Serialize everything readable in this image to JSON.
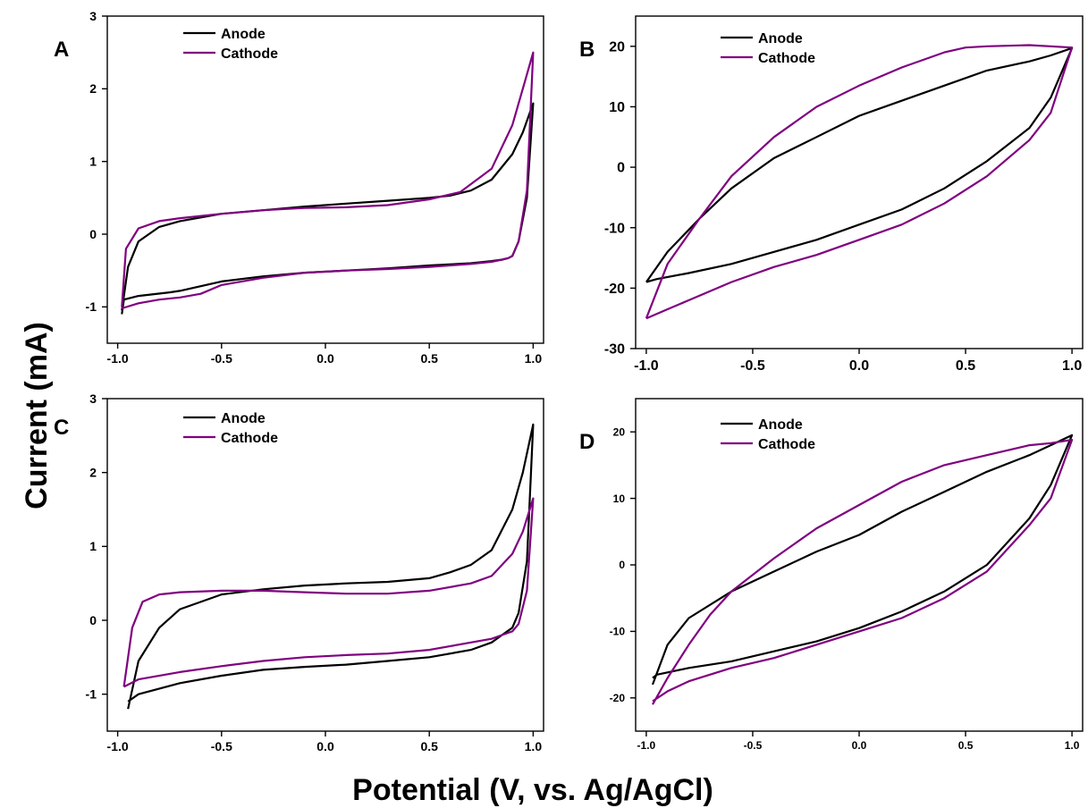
{
  "figure": {
    "ylabel": "Current (mA)",
    "xlabel": "Potential (V, vs. Ag/AgCl)"
  },
  "colors": {
    "Anode": "#000000",
    "Cathode": "#800080"
  },
  "chart_data": [
    {
      "panel": "A",
      "type": "line",
      "xlim": [
        -1.05,
        1.05
      ],
      "ylim": [
        -1.5,
        3
      ],
      "xticks": [
        -1.0,
        -0.5,
        0.0,
        0.5,
        1.0
      ],
      "xtick_labels": [
        "-1.0",
        "-0.5",
        "0.0",
        "0.5",
        "1.0"
      ],
      "yticks": [
        -1,
        0,
        1,
        2,
        3
      ],
      "ytick_labels": [
        "-1",
        "0",
        "1",
        "2",
        "3"
      ],
      "legend": "top-left",
      "series": [
        {
          "name": "Anode",
          "x": [
            -0.98,
            -0.95,
            -0.9,
            -0.8,
            -0.7,
            -0.5,
            -0.3,
            -0.1,
            0.1,
            0.3,
            0.5,
            0.6,
            0.7,
            0.8,
            0.9,
            0.95,
            1.0,
            0.97,
            0.93,
            0.9,
            0.88,
            0.85,
            0.8,
            0.7,
            0.5,
            0.3,
            0.1,
            -0.1,
            -0.3,
            -0.5,
            -0.7,
            -0.75,
            -0.9,
            -0.97,
            -0.98
          ],
          "y": [
            -1.05,
            -0.45,
            -0.1,
            0.1,
            0.18,
            0.28,
            0.33,
            0.38,
            0.42,
            0.46,
            0.5,
            0.53,
            0.6,
            0.75,
            1.1,
            1.4,
            1.8,
            0.5,
            -0.1,
            -0.3,
            -0.33,
            -0.35,
            -0.37,
            -0.4,
            -0.43,
            -0.47,
            -0.5,
            -0.53,
            -0.58,
            -0.65,
            -0.78,
            -0.8,
            -0.85,
            -0.9,
            -1.1
          ]
        },
        {
          "name": "Cathode",
          "x": [
            -0.98,
            -0.96,
            -0.9,
            -0.8,
            -0.7,
            -0.5,
            -0.3,
            -0.1,
            0.1,
            0.3,
            0.5,
            0.65,
            0.8,
            0.9,
            0.95,
            1.0,
            0.97,
            0.93,
            0.9,
            0.88,
            0.85,
            0.8,
            0.7,
            0.5,
            0.3,
            0.1,
            -0.1,
            -0.3,
            -0.5,
            -0.6,
            -0.7,
            -0.8,
            -0.9,
            -0.98
          ],
          "y": [
            -1.0,
            -0.2,
            0.08,
            0.18,
            0.22,
            0.28,
            0.33,
            0.36,
            0.37,
            0.4,
            0.48,
            0.58,
            0.9,
            1.5,
            2.0,
            2.5,
            0.6,
            -0.1,
            -0.3,
            -0.33,
            -0.35,
            -0.38,
            -0.41,
            -0.45,
            -0.48,
            -0.5,
            -0.53,
            -0.6,
            -0.7,
            -0.82,
            -0.87,
            -0.9,
            -0.95,
            -1.02
          ]
        }
      ]
    },
    {
      "panel": "B",
      "type": "line",
      "xlim": [
        -1.05,
        1.05
      ],
      "ylim": [
        -30,
        25
      ],
      "xticks": [
        -1.0,
        -0.5,
        0.0,
        0.5,
        1.0
      ],
      "xtick_labels": [
        "-1.0",
        "-0.5",
        "0.0",
        "0.5",
        "1.0"
      ],
      "yticks": [
        -30,
        -20,
        -10,
        0,
        10,
        20
      ],
      "ytick_labels": [
        "-30",
        "-20",
        "-10",
        "0",
        "10",
        "20"
      ],
      "legend": "top-left",
      "series": [
        {
          "name": "Anode",
          "x": [
            -1.0,
            -0.9,
            -0.75,
            -0.6,
            -0.4,
            -0.2,
            0.0,
            0.2,
            0.4,
            0.6,
            0.8,
            0.9,
            1.0,
            0.9,
            0.8,
            0.6,
            0.4,
            0.2,
            0.0,
            -0.2,
            -0.4,
            -0.6,
            -0.8,
            -0.95,
            -1.0
          ],
          "y": [
            -19,
            -14,
            -8.5,
            -3.5,
            1.5,
            5,
            8.5,
            11,
            13.5,
            16,
            17.5,
            18.5,
            19.7,
            11.5,
            6.5,
            1,
            -3.5,
            -7,
            -9.5,
            -12,
            -14,
            -16,
            -17.5,
            -18.5,
            -19
          ]
        },
        {
          "name": "Cathode",
          "x": [
            -1.0,
            -0.9,
            -0.75,
            -0.6,
            -0.4,
            -0.2,
            0.0,
            0.2,
            0.4,
            0.5,
            0.6,
            0.8,
            1.0,
            0.9,
            0.8,
            0.6,
            0.4,
            0.2,
            0.0,
            -0.2,
            -0.4,
            -0.6,
            -0.8,
            -0.9,
            -1.0
          ],
          "y": [
            -25,
            -16,
            -8.5,
            -1.5,
            5,
            10,
            13.5,
            16.5,
            19,
            19.8,
            20,
            20.2,
            19.8,
            9,
            4.5,
            -1.5,
            -6,
            -9.5,
            -12,
            -14.5,
            -16.5,
            -19,
            -22,
            -23.5,
            -25
          ]
        }
      ]
    },
    {
      "panel": "C",
      "type": "line",
      "xlim": [
        -1.05,
        1.05
      ],
      "ylim": [
        -1.5,
        3
      ],
      "xticks": [
        -1.0,
        -0.5,
        0.0,
        0.5,
        1.0
      ],
      "xtick_labels": [
        "-1.0",
        "-0.5",
        "0.0",
        "0.5",
        "1.0"
      ],
      "yticks": [
        -1,
        0,
        1,
        2,
        3
      ],
      "ytick_labels": [
        "-1",
        "0",
        "1",
        "2",
        "3"
      ],
      "legend": "top-left",
      "series": [
        {
          "name": "Anode",
          "x": [
            -0.95,
            -0.9,
            -0.8,
            -0.7,
            -0.5,
            -0.3,
            -0.1,
            0.1,
            0.3,
            0.5,
            0.6,
            0.7,
            0.8,
            0.9,
            0.95,
            1.0,
            0.97,
            0.93,
            0.9,
            0.85,
            0.8,
            0.7,
            0.5,
            0.3,
            0.1,
            -0.1,
            -0.3,
            -0.5,
            -0.7,
            -0.9,
            -0.95
          ],
          "y": [
            -1.2,
            -0.55,
            -0.1,
            0.15,
            0.35,
            0.42,
            0.47,
            0.5,
            0.52,
            0.57,
            0.65,
            0.75,
            0.95,
            1.5,
            2.0,
            2.65,
            0.8,
            0.1,
            -0.1,
            -0.2,
            -0.3,
            -0.4,
            -0.5,
            -0.55,
            -0.6,
            -0.63,
            -0.67,
            -0.75,
            -0.85,
            -1.0,
            -1.1
          ]
        },
        {
          "name": "Cathode",
          "x": [
            -0.97,
            -0.93,
            -0.88,
            -0.8,
            -0.7,
            -0.5,
            -0.3,
            -0.1,
            0.1,
            0.3,
            0.5,
            0.7,
            0.8,
            0.9,
            0.95,
            1.0,
            0.97,
            0.93,
            0.9,
            0.85,
            0.8,
            0.7,
            0.5,
            0.3,
            0.1,
            -0.1,
            -0.3,
            -0.5,
            -0.7,
            -0.9,
            -0.97
          ],
          "y": [
            -0.9,
            -0.1,
            0.25,
            0.35,
            0.38,
            0.4,
            0.4,
            0.38,
            0.36,
            0.36,
            0.4,
            0.5,
            0.6,
            0.9,
            1.2,
            1.65,
            0.4,
            -0.05,
            -0.15,
            -0.2,
            -0.25,
            -0.3,
            -0.4,
            -0.45,
            -0.47,
            -0.5,
            -0.55,
            -0.62,
            -0.7,
            -0.8,
            -0.9
          ]
        }
      ]
    },
    {
      "panel": "D",
      "type": "line",
      "xlim": [
        -1.05,
        1.05
      ],
      "ylim": [
        -25,
        25
      ],
      "xticks": [
        -1.0,
        -0.5,
        0.0,
        0.5,
        1.0
      ],
      "xtick_labels": [
        "-1.0",
        "-0.5",
        "0.0",
        "0.5",
        "1.0"
      ],
      "yticks": [
        -20,
        -10,
        0,
        10,
        20
      ],
      "ytick_labels": [
        "-20",
        "-10",
        "0",
        "10",
        "20"
      ],
      "legend": "top-left",
      "series": [
        {
          "name": "Anode",
          "x": [
            -0.97,
            -0.9,
            -0.8,
            -0.6,
            -0.4,
            -0.2,
            0.0,
            0.2,
            0.4,
            0.6,
            0.8,
            0.9,
            1.0,
            0.9,
            0.8,
            0.6,
            0.4,
            0.2,
            0.0,
            -0.2,
            -0.4,
            -0.6,
            -0.8,
            -0.95,
            -0.97
          ],
          "y": [
            -18,
            -12,
            -8,
            -4,
            -1,
            2,
            4.5,
            8,
            11,
            14,
            16.5,
            18,
            19.5,
            12,
            7,
            0,
            -4,
            -7,
            -9.5,
            -11.5,
            -13,
            -14.5,
            -15.5,
            -16.5,
            -17
          ]
        },
        {
          "name": "Cathode",
          "x": [
            -0.97,
            -0.9,
            -0.8,
            -0.7,
            -0.6,
            -0.4,
            -0.2,
            0.0,
            0.2,
            0.4,
            0.6,
            0.8,
            0.9,
            1.0,
            0.9,
            0.8,
            0.6,
            0.4,
            0.2,
            0.0,
            -0.2,
            -0.4,
            -0.6,
            -0.8,
            -0.9,
            -0.97
          ],
          "y": [
            -21,
            -17,
            -12,
            -7.5,
            -4,
            1,
            5.5,
            9,
            12.5,
            15,
            16.5,
            18,
            18.3,
            18.8,
            10,
            6,
            -1,
            -5,
            -8,
            -10,
            -12,
            -14,
            -15.5,
            -17.5,
            -19,
            -20.5
          ]
        }
      ]
    }
  ]
}
